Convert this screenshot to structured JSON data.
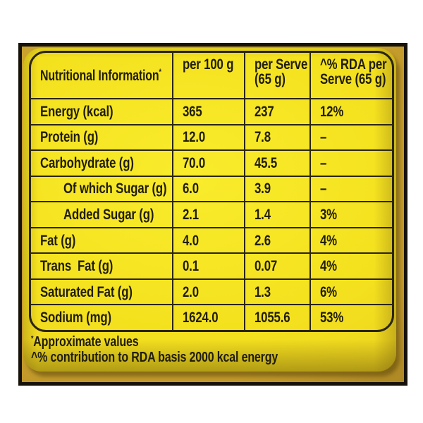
{
  "label_type": "nutrition-facts-panel",
  "colors": {
    "sticker_yellow": "#f4e11e",
    "gold_edge": "#c39a2b",
    "frame_black": "#16120a",
    "line_color": "#2a250f",
    "text_color": "#211d0d"
  },
  "table": {
    "header": {
      "col1": "Nutritional Information",
      "col1_sup": "*",
      "col2": "per 100 g",
      "col3_line1": "per Serve",
      "col3_line2": "(65 g)",
      "col4_line1": "^% RDA per",
      "col4_line2": "Serve (65 g)"
    },
    "rows": [
      {
        "label": "Energy (kcal)",
        "per100": "365",
        "perServe": "237",
        "rda": "12%"
      },
      {
        "label": "Protein (g)",
        "per100": "12.0",
        "perServe": "7.8",
        "rda": "–"
      },
      {
        "label": "Carbohydrate (g)",
        "per100": "70.0",
        "perServe": "45.5",
        "rda": "–"
      },
      {
        "label": "Of which Sugar (g)",
        "per100": "6.0",
        "perServe": "3.9",
        "rda": "–"
      },
      {
        "label": "Added Sugar (g)",
        "per100": "2.1",
        "perServe": "1.4",
        "rda": "3%"
      },
      {
        "label": "Fat (g)",
        "per100": "4.0",
        "perServe": "2.6",
        "rda": "4%"
      },
      {
        "label": "Trans  Fat (g)",
        "per100": "0.1",
        "perServe": "0.07",
        "rda": "4%"
      },
      {
        "label": "Saturated Fat (g)",
        "per100": "2.0",
        "perServe": "1.3",
        "rda": "6%"
      },
      {
        "label": "Sodium (mg)",
        "per100": "1624.0",
        "perServe": "1055.6",
        "rda": "53%"
      }
    ],
    "footnotes": [
      {
        "sup": "*",
        "text": "Approximate values"
      },
      {
        "sup": "",
        "text": "^% contribution to RDA basis 2000 kcal energy"
      }
    ]
  }
}
